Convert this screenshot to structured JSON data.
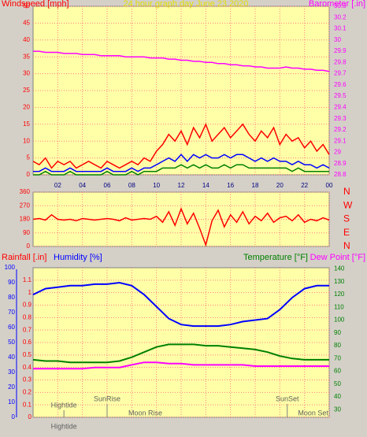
{
  "chart_data": [
    {
      "type": "line",
      "title": "24 hour graph day    June 23 2020",
      "ylabel": "Windspeed [mph]",
      "y2label": "Barometer [.in]",
      "x": [
        0,
        0.5,
        1,
        1.5,
        2,
        2.5,
        3,
        3.5,
        4,
        4.5,
        5,
        5.5,
        6,
        6.5,
        7,
        7.5,
        8,
        8.5,
        9,
        9.5,
        10,
        10.5,
        11,
        11.5,
        12,
        12.5,
        13,
        13.5,
        14,
        14.5,
        15,
        15.5,
        16,
        16.5,
        17,
        17.5,
        18,
        18.5,
        19,
        19.5,
        20,
        20.5,
        21,
        21.5,
        22,
        22.5,
        23,
        23.5,
        24
      ],
      "xlim": [
        0,
        24
      ],
      "xticks": [
        {
          "value": 2,
          "label": "02"
        },
        {
          "value": 4,
          "label": "04"
        },
        {
          "value": 6,
          "label": "06"
        },
        {
          "value": 8,
          "label": "08"
        },
        10,
        12,
        14,
        16,
        18,
        20,
        22,
        {
          "value": 24,
          "label": "00"
        }
      ],
      "ylim": [
        0,
        50
      ],
      "yticks": [
        0,
        5,
        10,
        15,
        20,
        25,
        30,
        35,
        40,
        45,
        50
      ],
      "y2lim": [
        28.8,
        30.3
      ],
      "y2ticks": [
        28.8,
        28.9,
        {
          "value": 29.0,
          "label": "29"
        },
        29.1,
        29.2,
        29.3,
        29.4,
        29.5,
        29.6,
        29.7,
        29.8,
        29.9,
        {
          "value": 30.0,
          "label": "30"
        },
        30.1,
        30.2,
        30.3
      ],
      "series": [
        {
          "color": "#ff0000",
          "values": [
            4,
            3,
            5,
            2,
            4,
            3,
            4,
            2,
            3,
            4,
            3,
            2,
            4,
            3,
            2,
            3,
            4,
            3,
            5,
            4,
            7,
            9,
            12,
            10,
            13,
            9,
            14,
            11,
            15,
            10,
            12,
            14,
            11,
            13,
            15,
            12,
            10,
            13,
            11,
            14,
            9,
            12,
            10,
            11,
            8,
            10,
            7,
            9,
            6
          ]
        },
        {
          "color": "#0000ff",
          "values": [
            1,
            1,
            2,
            1,
            1,
            1,
            2,
            1,
            1,
            1,
            1,
            1,
            2,
            1,
            1,
            1,
            2,
            1,
            2,
            2,
            3,
            4,
            5,
            4,
            6,
            4,
            6,
            5,
            6,
            5,
            5,
            6,
            5,
            6,
            6,
            5,
            4,
            5,
            4,
            5,
            4,
            4,
            3,
            4,
            3,
            3,
            2,
            3,
            2
          ]
        },
        {
          "color": "#008000",
          "values": [
            0,
            0,
            1,
            0,
            0,
            0,
            1,
            0,
            0,
            0,
            0,
            0,
            1,
            0,
            0,
            0,
            1,
            0,
            1,
            1,
            1,
            2,
            2,
            2,
            3,
            2,
            3,
            2,
            3,
            2,
            2,
            3,
            2,
            3,
            3,
            2,
            2,
            2,
            2,
            2,
            2,
            2,
            1,
            2,
            1,
            1,
            1,
            1,
            1
          ]
        },
        {
          "color": "#ff00ff",
          "axis": "y2",
          "values": [
            29.9,
            29.9,
            29.89,
            29.89,
            29.89,
            29.88,
            29.88,
            29.88,
            29.87,
            29.87,
            29.87,
            29.86,
            29.86,
            29.86,
            29.86,
            29.85,
            29.85,
            29.85,
            29.85,
            29.84,
            29.84,
            29.84,
            29.83,
            29.83,
            29.82,
            29.82,
            29.81,
            29.81,
            29.8,
            29.8,
            29.79,
            29.79,
            29.78,
            29.78,
            29.77,
            29.77,
            29.76,
            29.76,
            29.75,
            29.75,
            29.75,
            29.76,
            29.75,
            29.75,
            29.74,
            29.74,
            29.73,
            29.73,
            29.72
          ]
        }
      ]
    },
    {
      "type": "line",
      "x": [
        0,
        0.5,
        1,
        1.5,
        2,
        2.5,
        3,
        3.5,
        4,
        4.5,
        5,
        5.5,
        6,
        6.5,
        7,
        7.5,
        8,
        8.5,
        9,
        9.5,
        10,
        10.5,
        11,
        11.5,
        12,
        12.5,
        13,
        13.5,
        14,
        14.5,
        15,
        15.5,
        16,
        16.5,
        17,
        17.5,
        18,
        18.5,
        19,
        19.5,
        20,
        20.5,
        21,
        21.5,
        22,
        22.5,
        23,
        23.5,
        24
      ],
      "xlim": [
        0,
        24
      ],
      "ylim": [
        0,
        360
      ],
      "yticks": [
        0,
        90,
        180,
        270,
        360
      ],
      "y2lim": [
        0,
        360
      ],
      "y2ticks": [
        {
          "value": 0,
          "label": "N"
        },
        {
          "value": 90,
          "label": "E"
        },
        {
          "value": 180,
          "label": "S"
        },
        {
          "value": 270,
          "label": "W"
        },
        {
          "value": 360,
          "label": "N"
        }
      ],
      "series": [
        {
          "color": "#ff0000",
          "values": [
            180,
            185,
            175,
            210,
            180,
            175,
            180,
            170,
            185,
            180,
            175,
            180,
            185,
            180,
            170,
            190,
            175,
            180,
            185,
            180,
            200,
            160,
            230,
            140,
            250,
            150,
            220,
            120,
            10,
            170,
            240,
            130,
            210,
            160,
            230,
            150,
            200,
            170,
            220,
            160,
            190,
            200,
            170,
            210,
            160,
            180,
            170,
            190,
            175
          ]
        }
      ]
    },
    {
      "type": "line",
      "rainlabel": "Rainfall [.in]",
      "ylabel": "Humidity [%]",
      "y2label": "Temperature [°F]",
      "dewlabel": "Dew Point [°F]",
      "x": [
        0,
        1,
        2,
        3,
        4,
        5,
        6,
        7,
        8,
        9,
        10,
        11,
        12,
        13,
        14,
        15,
        16,
        17,
        18,
        19,
        20,
        21,
        22,
        23,
        24
      ],
      "xlim": [
        0,
        24
      ],
      "ylim": [
        0,
        100
      ],
      "yticks": [
        0,
        10,
        20,
        30,
        40,
        50,
        60,
        70,
        80,
        90,
        100
      ],
      "y3lim": [
        0,
        1.2
      ],
      "y3ticks": [
        0,
        0.1,
        0.2,
        0.3,
        0.4,
        0.5,
        0.6,
        0.7,
        0.8,
        0.9,
        {
          "value": 1.0,
          "label": "1"
        },
        1.1
      ],
      "y2lim": [
        24,
        141
      ],
      "y2ticks": [
        30,
        40,
        50,
        60,
        70,
        80,
        90,
        100,
        110,
        120,
        130,
        140
      ],
      "series": [
        {
          "color": "#0000ff",
          "values": [
            82,
            86,
            87,
            88,
            88,
            89,
            89,
            90,
            88,
            82,
            74,
            66,
            62,
            61,
            61,
            61,
            62,
            64,
            65,
            66,
            72,
            80,
            86,
            88,
            88
          ]
        },
        {
          "color": "#008000",
          "axis": "y2",
          "values": [
            69,
            68,
            68,
            67,
            67,
            67,
            67,
            68,
            71,
            75,
            79,
            81,
            81,
            81,
            80,
            80,
            79,
            78,
            77,
            75,
            72,
            70,
            69,
            69,
            69
          ]
        },
        {
          "color": "#ff00ff",
          "axis": "y2",
          "values": [
            62,
            62,
            62,
            62,
            62,
            63,
            63,
            63,
            65,
            67,
            67,
            66,
            66,
            65,
            65,
            65,
            65,
            65,
            64,
            64,
            64,
            64,
            64,
            64,
            64
          ]
        }
      ],
      "annotations": [
        {
          "text": "Hightide",
          "x": 2.5
        },
        {
          "text": "SunRise",
          "x": 6
        },
        {
          "text": "Moon Rise",
          "x": 9.1
        },
        {
          "text": "SunSet",
          "x": 20.6
        },
        {
          "text": "Moon Set",
          "x": 22.7
        },
        {
          "text": "Hightide",
          "x": 2.5
        }
      ]
    }
  ]
}
